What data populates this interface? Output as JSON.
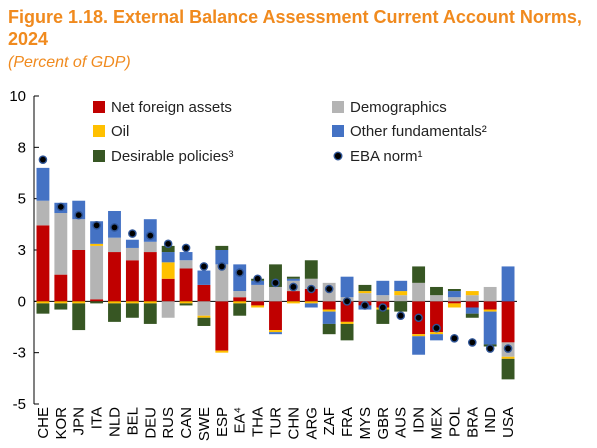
{
  "title": "Figure 1.18. External Balance Assessment Current Account Norms, 2024",
  "subtitle": "(Percent of GDP)",
  "colors": {
    "Net foreign assets": "#c00000",
    "Oil": "#ffc000",
    "Desirable policies³": "#375623",
    "Demographics": "#b4b4b4",
    "Other fundamentals²": "#4472c4",
    "EBA norm¹": "#000000"
  },
  "chart_data": {
    "type": "bar",
    "stacked": true,
    "categories": [
      "CHE",
      "KOR",
      "JPN",
      "ITA",
      "NLD",
      "BEL",
      "DEU",
      "RUS",
      "CAN",
      "SWE",
      "ESP",
      "EA⁴",
      "THA",
      "TUR",
      "CHN",
      "ARG",
      "ZAF",
      "FRA",
      "MYS",
      "GBR",
      "AUS",
      "IDN",
      "MEX",
      "POL",
      "BRA",
      "IND",
      "USA"
    ],
    "ylim": [
      -5,
      10
    ],
    "yticks": [
      "10",
      "8",
      "5",
      "3",
      "0",
      "-3",
      "-5"
    ],
    "ytick_values": [
      10,
      7.5,
      5,
      2.5,
      0,
      -2.5,
      -5
    ],
    "xlabel": "",
    "ylabel": "",
    "legend_position": "top-right",
    "legend": [
      "Net foreign assets",
      "Demographics",
      "Oil",
      "Other fundamentals²",
      "Desirable policies³",
      "EBA norm¹"
    ],
    "series": [
      {
        "name": "Net foreign assets",
        "values": [
          3.7,
          1.3,
          2.5,
          0.1,
          2.4,
          2.0,
          2.4,
          1.1,
          1.6,
          0.8,
          -2.4,
          0.2,
          -0.2,
          -1.4,
          0.5,
          0.6,
          -0.4,
          -1.0,
          -0.2,
          -0.3,
          0.0,
          -1.6,
          -1.5,
          -0.1,
          -0.3,
          -0.4,
          -2.0
        ]
      },
      {
        "name": "Demographics",
        "values": [
          1.2,
          3.0,
          1.5,
          2.6,
          0.7,
          0.6,
          0.5,
          -0.8,
          0.4,
          -0.7,
          1.8,
          0.3,
          0.8,
          0.7,
          0.5,
          0.5,
          0.9,
          0.2,
          0.4,
          0.3,
          0.3,
          0.9,
          0.3,
          0.2,
          0.3,
          0.7,
          -0.7
        ]
      },
      {
        "name": "Oil",
        "values": [
          -0.1,
          -0.1,
          -0.1,
          0.1,
          -0.1,
          -0.1,
          -0.1,
          0.8,
          -0.1,
          -0.1,
          -0.1,
          -0.1,
          -0.1,
          -0.1,
          -0.1,
          -0.1,
          -0.1,
          -0.1,
          0.1,
          -0.1,
          0.2,
          -0.1,
          -0.1,
          -0.2,
          0.2,
          -0.1,
          -0.1
        ]
      },
      {
        "name": "Other fundamentals²",
        "values": [
          1.6,
          0.5,
          0.9,
          1.1,
          1.3,
          0.4,
          1.1,
          0.5,
          0.4,
          0.7,
          0.7,
          1.3,
          0.2,
          -0.1,
          0.1,
          -0.2,
          -0.6,
          1.0,
          -0.2,
          0.7,
          0.5,
          -0.9,
          -0.3,
          0.3,
          -0.3,
          -1.6,
          1.7
        ]
      },
      {
        "name": "Desirable policies³",
        "values": [
          -0.5,
          -0.3,
          -1.3,
          -0.1,
          -0.9,
          -0.7,
          -1.0,
          0.3,
          -0.1,
          -0.4,
          0.2,
          -0.6,
          0.1,
          1.1,
          0.1,
          0.9,
          -0.5,
          -0.8,
          0.3,
          -0.7,
          -0.5,
          0.8,
          0.4,
          0.1,
          -0.2,
          -0.1,
          -1.0
        ]
      }
    ],
    "eba_norm": {
      "name": "EBA norm¹",
      "values": [
        6.9,
        4.6,
        4.2,
        3.7,
        3.6,
        3.3,
        3.2,
        2.8,
        2.6,
        1.7,
        1.7,
        1.4,
        1.1,
        0.9,
        0.7,
        0.6,
        0.6,
        0.0,
        -0.2,
        -0.3,
        -0.7,
        -0.8,
        -1.3,
        -1.8,
        -2.0,
        -2.3,
        -2.3
      ]
    }
  }
}
